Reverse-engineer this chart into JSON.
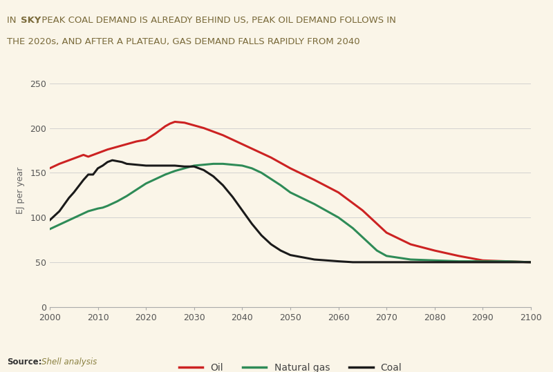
{
  "title_bg_color": "#F0C419",
  "title_text_color": "#7a6a3a",
  "background_color": "#FAF5E8",
  "ylabel": "EJ per year",
  "source_label": "Source:",
  "source_text": "Shell analysis",
  "ylim": [
    0,
    260
  ],
  "yticks": [
    0,
    50,
    100,
    150,
    200,
    250
  ],
  "xlim": [
    2000,
    2100
  ],
  "xticks": [
    2000,
    2010,
    2020,
    2030,
    2040,
    2050,
    2060,
    2070,
    2080,
    2090,
    2100
  ],
  "oil": {
    "color": "#CC2222",
    "label": "Oil",
    "x": [
      2000,
      2002,
      2004,
      2006,
      2007,
      2008,
      2010,
      2012,
      2014,
      2016,
      2018,
      2019,
      2020,
      2022,
      2024,
      2025,
      2026,
      2028,
      2030,
      2032,
      2034,
      2036,
      2038,
      2040,
      2042,
      2044,
      2046,
      2048,
      2050,
      2055,
      2060,
      2065,
      2070,
      2075,
      2080,
      2085,
      2090,
      2095,
      2100
    ],
    "y": [
      155,
      160,
      164,
      168,
      170,
      168,
      172,
      176,
      179,
      182,
      185,
      186,
      187,
      194,
      202,
      205,
      207,
      206,
      203,
      200,
      196,
      192,
      187,
      182,
      177,
      172,
      167,
      161,
      155,
      142,
      128,
      108,
      83,
      70,
      63,
      57,
      52,
      51,
      50
    ]
  },
  "gas": {
    "color": "#2E8B57",
    "label": "Natural gas",
    "x": [
      2000,
      2002,
      2004,
      2006,
      2008,
      2010,
      2011,
      2012,
      2014,
      2016,
      2018,
      2020,
      2022,
      2024,
      2026,
      2028,
      2030,
      2032,
      2034,
      2036,
      2038,
      2040,
      2042,
      2044,
      2046,
      2048,
      2050,
      2055,
      2060,
      2063,
      2065,
      2068,
      2070,
      2075,
      2080,
      2085,
      2090,
      2095,
      2100
    ],
    "y": [
      87,
      92,
      97,
      102,
      107,
      110,
      111,
      113,
      118,
      124,
      131,
      138,
      143,
      148,
      152,
      155,
      158,
      159,
      160,
      160,
      159,
      158,
      155,
      150,
      143,
      136,
      128,
      115,
      100,
      88,
      78,
      63,
      57,
      53,
      52,
      51,
      51,
      51,
      50
    ]
  },
  "coal": {
    "color": "#1a1a1a",
    "label": "Coal",
    "x": [
      2000,
      2002,
      2004,
      2005,
      2006,
      2007,
      2008,
      2009,
      2010,
      2011,
      2012,
      2013,
      2014,
      2015,
      2016,
      2018,
      2020,
      2022,
      2024,
      2026,
      2028,
      2030,
      2032,
      2034,
      2036,
      2038,
      2040,
      2042,
      2044,
      2046,
      2048,
      2050,
      2055,
      2060,
      2063,
      2065,
      2068,
      2070,
      2075,
      2080,
      2090,
      2100
    ],
    "y": [
      97,
      107,
      122,
      128,
      135,
      142,
      148,
      148,
      155,
      158,
      162,
      164,
      163,
      162,
      160,
      159,
      158,
      158,
      158,
      158,
      157,
      157,
      153,
      146,
      136,
      123,
      108,
      93,
      80,
      70,
      63,
      58,
      53,
      51,
      50,
      50,
      50,
      50,
      50,
      50,
      50,
      50
    ]
  },
  "line_width": 2.2,
  "legend_colors": {
    "Oil": "#CC2222",
    "Natural gas": "#2E8B57",
    "Coal": "#1a1a1a"
  }
}
